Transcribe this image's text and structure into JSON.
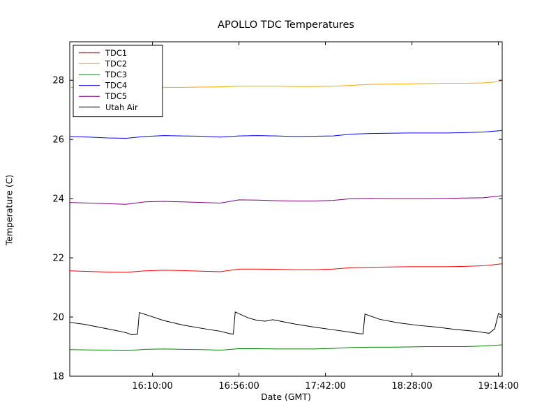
{
  "chart_data": {
    "type": "line",
    "title": "APOLLO TDC Temperatures",
    "xlabel": "Date (GMT)",
    "ylabel": "Temperature (C)",
    "xlim": [
      0,
      230
    ],
    "ylim": [
      18,
      29.3
    ],
    "grid": false,
    "legend_position": "upper left",
    "axis_color": "#000000",
    "xticks": [
      {
        "pos": 44,
        "label": "16:10:00"
      },
      {
        "pos": 90,
        "label": "16:56:00"
      },
      {
        "pos": 136,
        "label": "17:42:00"
      },
      {
        "pos": 182,
        "label": "18:28:00"
      },
      {
        "pos": 228,
        "label": "19:14:00"
      }
    ],
    "yticks": [
      {
        "pos": 18,
        "label": "18"
      },
      {
        "pos": 20,
        "label": "20"
      },
      {
        "pos": 22,
        "label": "22"
      },
      {
        "pos": 24,
        "label": "24"
      },
      {
        "pos": 26,
        "label": "26"
      },
      {
        "pos": 28,
        "label": "28"
      }
    ],
    "x_common": [
      0,
      10,
      20,
      30,
      40,
      50,
      60,
      70,
      80,
      90,
      100,
      110,
      120,
      130,
      140,
      150,
      160,
      170,
      180,
      190,
      200,
      210,
      220,
      230
    ],
    "series": [
      {
        "name": "TDC1",
        "color": "#ff0000",
        "y": [
          21.56,
          21.54,
          21.52,
          21.51,
          21.56,
          21.58,
          21.57,
          21.55,
          21.53,
          21.62,
          21.62,
          21.61,
          21.6,
          21.6,
          21.62,
          21.67,
          21.68,
          21.69,
          21.7,
          21.7,
          21.7,
          21.71,
          21.73,
          21.8
        ]
      },
      {
        "name": "TDC2",
        "color": "#ffa500",
        "y": [
          27.76,
          27.75,
          27.73,
          27.72,
          27.74,
          27.76,
          27.76,
          27.77,
          27.78,
          27.8,
          27.8,
          27.8,
          27.79,
          27.79,
          27.8,
          27.83,
          27.86,
          27.87,
          27.88,
          27.89,
          27.9,
          27.9,
          27.91,
          27.96
        ]
      },
      {
        "name": "TDC3",
        "color": "#008000",
        "y": [
          18.9,
          18.89,
          18.88,
          18.86,
          18.91,
          18.92,
          18.91,
          18.9,
          18.88,
          18.93,
          18.93,
          18.92,
          18.92,
          18.92,
          18.94,
          18.97,
          18.98,
          18.98,
          18.99,
          19.0,
          19.0,
          19.0,
          19.02,
          19.06
        ]
      },
      {
        "name": "TDC4",
        "color": "#0000ff",
        "y": [
          26.1,
          26.08,
          26.05,
          26.04,
          26.1,
          26.13,
          26.12,
          26.11,
          26.08,
          26.12,
          26.13,
          26.12,
          26.1,
          26.11,
          26.12,
          26.18,
          26.2,
          26.21,
          26.22,
          26.22,
          26.22,
          26.23,
          26.25,
          26.3
        ]
      },
      {
        "name": "TDC5",
        "color": "#800080",
        "y": [
          23.87,
          23.85,
          23.83,
          23.81,
          23.89,
          23.91,
          23.89,
          23.87,
          23.85,
          23.96,
          23.95,
          23.93,
          23.92,
          23.92,
          23.94,
          24.0,
          24.01,
          24.0,
          24.0,
          24.0,
          24.01,
          24.02,
          24.03,
          24.1
        ]
      },
      {
        "name": "Utah Air",
        "color": "#000000",
        "x": [
          0,
          8,
          16,
          24,
          30,
          33,
          36,
          37,
          42,
          50,
          60,
          70,
          80,
          85,
          87,
          88,
          95,
          100,
          104,
          108,
          112,
          120,
          130,
          140,
          150,
          154,
          156,
          157,
          165,
          175,
          185,
          195,
          205,
          215,
          221,
          223,
          226,
          228,
          230
        ],
        "y": [
          19.82,
          19.75,
          19.65,
          19.55,
          19.47,
          19.4,
          19.42,
          20.15,
          20.05,
          19.88,
          19.73,
          19.62,
          19.52,
          19.44,
          19.42,
          20.17,
          19.97,
          19.88,
          19.86,
          19.91,
          19.86,
          19.76,
          19.66,
          19.57,
          19.48,
          19.44,
          19.43,
          20.1,
          19.92,
          19.8,
          19.72,
          19.66,
          19.58,
          19.52,
          19.47,
          19.45,
          19.6,
          20.12,
          20.05
        ]
      }
    ],
    "legend_order": [
      "TDC1",
      "TDC2",
      "TDC3",
      "TDC4",
      "TDC5",
      "Utah Air"
    ]
  }
}
